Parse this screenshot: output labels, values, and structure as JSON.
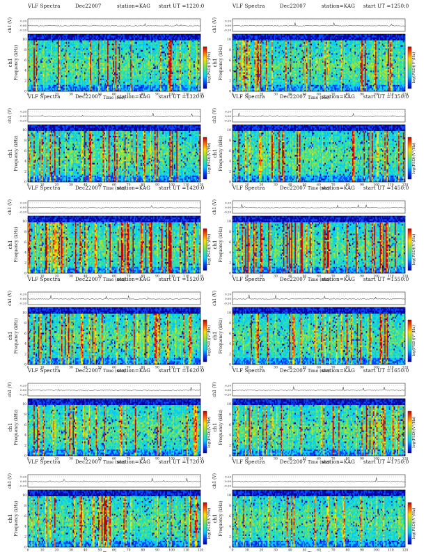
{
  "figure": {
    "panels": [
      {
        "title": "VLF Spectra",
        "date": "Dec22007",
        "station": "station=KAG",
        "start": "start  UT  =1220:0",
        "intensity": 0.55,
        "seed": 11
      },
      {
        "title": "VLF Spectra",
        "date": "Dec22007",
        "station": "station=KAG",
        "start": "start  UT  =1250:0",
        "intensity": 0.4,
        "seed": 23
      },
      {
        "title": "VLF Spectra",
        "date": "Dec22007",
        "station": "station=KAG",
        "start": "start  UT  =1320:0",
        "intensity": 0.55,
        "seed": 37
      },
      {
        "title": "VLF Spectra",
        "date": "Dec22007",
        "station": "station=KAG",
        "start": "start  UT  =1350:0",
        "intensity": 0.6,
        "seed": 41
      },
      {
        "title": "VLF Spectra",
        "date": "Dec22007",
        "station": "station=KAG",
        "start": "start  UT  =1420:0",
        "intensity": 0.85,
        "seed": 53
      },
      {
        "title": "VLF Spectra",
        "date": "Dec22007",
        "station": "station=KAG",
        "start": "start  UT  =1450:0",
        "intensity": 0.85,
        "seed": 67
      },
      {
        "title": "VLF Spectra",
        "date": "Dec22007",
        "station": "station=KAG",
        "start": "start  UT  =1520:0",
        "intensity": 0.6,
        "seed": 71
      },
      {
        "title": "VLF Spectra",
        "date": "Dec22007",
        "station": "station=KAG",
        "start": "start  UT  =1550:0",
        "intensity": 0.5,
        "seed": 83
      },
      {
        "title": "VLF Spectra",
        "date": "Dec22007",
        "station": "station=KAG",
        "start": "start  UT  =1620:0",
        "intensity": 0.45,
        "seed": 97
      },
      {
        "title": "VLF Spectra",
        "date": "Dec22007",
        "station": "station=KAG",
        "start": "start  UT  =1650:0",
        "intensity": 0.5,
        "seed": 101
      },
      {
        "title": "VLF Spectra",
        "date": "Dec22007",
        "station": "station=KAG",
        "start": "start  UT  =1720:0",
        "intensity": 0.5,
        "seed": 113
      },
      {
        "title": "VLF Spectra",
        "date": "Dec22007",
        "station": "station=KAG",
        "start": "start  UT  =1750:0",
        "intensity": 0.25,
        "seed": 127
      }
    ]
  },
  "chart_data": {
    "type": "heatmap",
    "xlabel": "Time  (sec)",
    "ylabel": "Frequency  (kHz)",
    "channel_label": "ch1",
    "waveform_ylabel": "ch1 (V)",
    "waveform_ticks": [
      "0.20",
      "0.00",
      "-0.20"
    ],
    "colorbar_label": "log(PSD)(V²/Hz)",
    "x_ticks": [
      0,
      10,
      20,
      30,
      40,
      50,
      60,
      70,
      80,
      90,
      100,
      110,
      120
    ],
    "xlim": [
      0,
      120
    ],
    "y_ticks": [
      0,
      2,
      4,
      6,
      8,
      10
    ],
    "ylim": [
      0,
      11
    ],
    "colorscale": [
      "#0000a0",
      "#0044ff",
      "#00c8ff",
      "#30e0a0",
      "#9fe030",
      "#ffe000",
      "#ff6000",
      "#c00000"
    ],
    "grid": false
  }
}
